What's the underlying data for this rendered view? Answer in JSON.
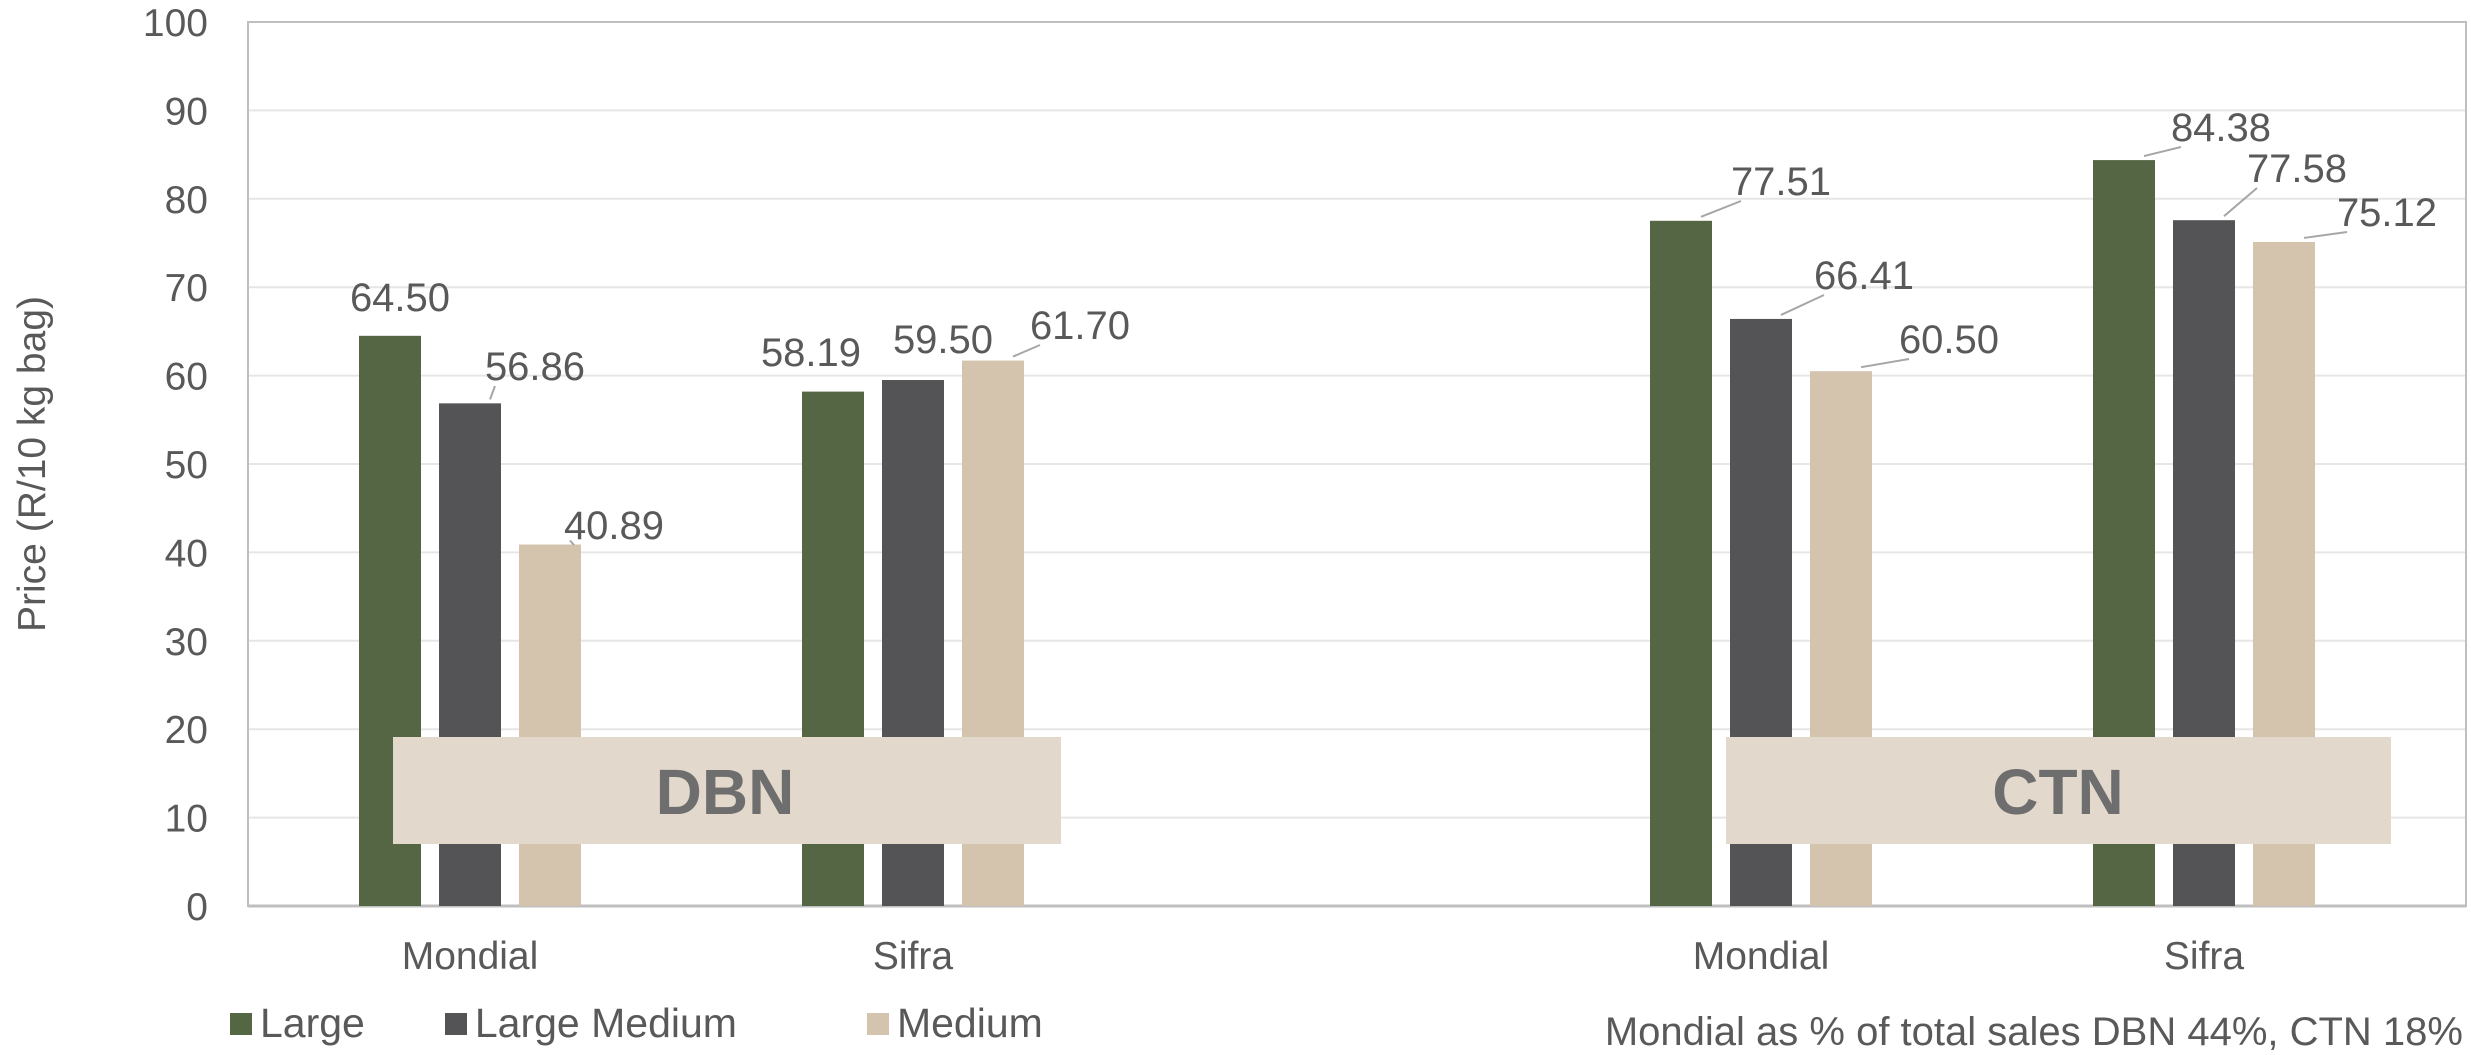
{
  "chart_data": {
    "type": "bar",
    "ylabel": "Price (R/10 kg bag)",
    "ylim": [
      0,
      100
    ],
    "ytick_step": 10,
    "grid": true,
    "groups": [
      {
        "label": "DBN",
        "categories": [
          "Mondial",
          "Sifra"
        ]
      },
      {
        "label": "CTN",
        "categories": [
          "Mondial",
          "Sifra"
        ]
      }
    ],
    "series": [
      {
        "name": "Large",
        "color": "#556645",
        "values": [
          64.5,
          58.19,
          77.51,
          84.38
        ]
      },
      {
        "name": "Large Medium",
        "color": "#545456",
        "values": [
          56.86,
          59.5,
          66.41,
          77.58
        ]
      },
      {
        "name": "Medium",
        "color": "#d4c3ad",
        "values": [
          40.89,
          61.7,
          60.5,
          75.12
        ]
      }
    ],
    "data_labels": [
      [
        "64.50",
        "58.19",
        "77.51",
        "84.38"
      ],
      [
        "56.86",
        "59.50",
        "66.41",
        "77.58"
      ],
      [
        "40.89",
        "61.70",
        "60.50",
        "75.12"
      ]
    ],
    "legend_position": "bottom-left",
    "footnote": "Mondial as % of total sales DBN 44%, CTN 18%"
  }
}
